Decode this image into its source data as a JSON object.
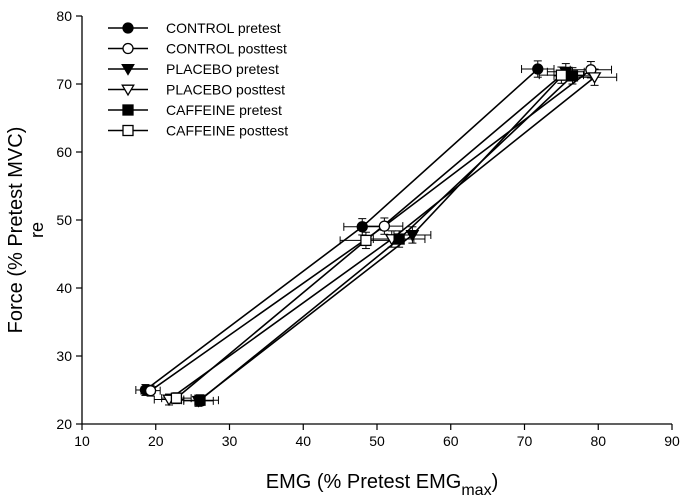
{
  "chart_data": {
    "type": "scatter",
    "xlabel": "EMG (% Pretest EMG",
    "xlabel_sub": "max",
    "xlabel_close": ")",
    "ylabel": "Force (% Pretest MVC)",
    "ylabel_extra": "re",
    "xlim": [
      10,
      90
    ],
    "ylim": [
      20,
      80
    ],
    "x_ticks": [
      10,
      20,
      30,
      40,
      50,
      60,
      70,
      80,
      90
    ],
    "y_ticks": [
      20,
      30,
      40,
      50,
      60,
      70,
      80
    ],
    "legend_position": "top-left",
    "series": [
      {
        "name": "CONTROL pretest",
        "marker": "circle",
        "filled": true,
        "x": [
          18.6,
          48.0,
          71.8
        ],
        "y": [
          25.0,
          49.0,
          72.2
        ],
        "xerr": [
          1.3,
          2.5,
          2.2
        ],
        "yerr": [
          0.8,
          1.2,
          1.2
        ]
      },
      {
        "name": "CONTROL posttest",
        "marker": "circle",
        "filled": false,
        "x": [
          19.3,
          51.0,
          79.0
        ],
        "y": [
          24.9,
          49.1,
          72.1
        ],
        "xerr": [
          1.3,
          2.5,
          2.8
        ],
        "yerr": [
          0.8,
          1.2,
          1.2
        ]
      },
      {
        "name": "PLACEBO pretest",
        "marker": "triangle-down",
        "filled": true,
        "x": [
          25.8,
          54.8,
          75.6
        ],
        "y": [
          23.4,
          47.8,
          71.8
        ],
        "xerr": [
          2.0,
          2.5,
          2.5
        ],
        "yerr": [
          0.8,
          1.2,
          1.2
        ]
      },
      {
        "name": "PLACEBO posttest",
        "marker": "triangle-down",
        "filled": false,
        "x": [
          21.8,
          52.0,
          79.5
        ],
        "y": [
          23.6,
          47.2,
          71.0
        ],
        "xerr": [
          2.0,
          3.0,
          3.0
        ],
        "yerr": [
          0.8,
          1.2,
          1.2
        ]
      },
      {
        "name": "CAFFEINE pretest",
        "marker": "square",
        "filled": true,
        "x": [
          26.0,
          53.0,
          76.5
        ],
        "y": [
          23.5,
          47.2,
          71.2
        ],
        "xerr": [
          2.5,
          3.5,
          2.5
        ],
        "yerr": [
          0.8,
          1.2,
          1.2
        ]
      },
      {
        "name": "CAFFEINE posttest",
        "marker": "square",
        "filled": false,
        "x": [
          22.8,
          48.5,
          75.0
        ],
        "y": [
          23.8,
          47.0,
          71.3
        ],
        "xerr": [
          2.0,
          3.5,
          3.0
        ],
        "yerr": [
          0.8,
          1.2,
          1.2
        ]
      }
    ]
  },
  "colors": {
    "ink": "#000000",
    "background": "#ffffff"
  }
}
